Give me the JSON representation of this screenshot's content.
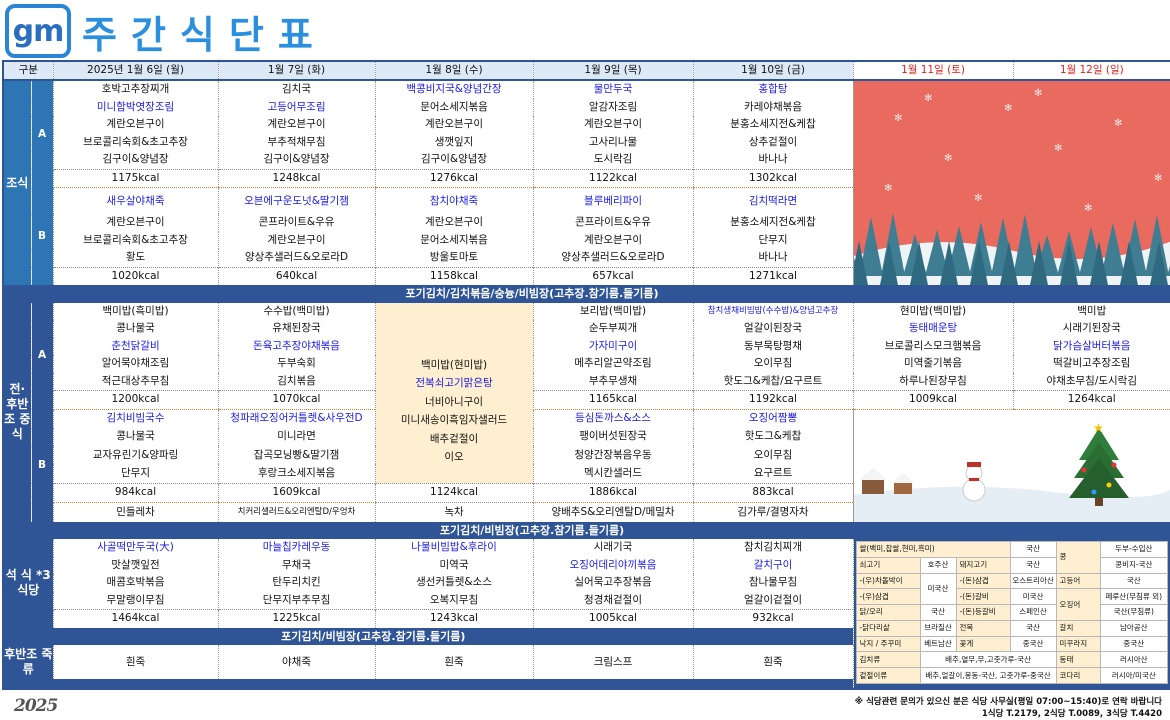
{
  "header": {
    "logo": "gm",
    "title": "주간식단표",
    "corner": "구분"
  },
  "colors": {
    "label_blue": "#2e75b6",
    "band_navy": "#2f5597",
    "highlight": "#1a1ae6",
    "weekend": "#e0201a",
    "merged_bg": "#fdefcf"
  },
  "days": [
    {
      "label": "2025년 1월 6일 (월)"
    },
    {
      "label": "1월 7일 (화)"
    },
    {
      "label": "1월 8일 (수)"
    },
    {
      "label": "1월 9일 (목)"
    },
    {
      "label": "1월 10일 (금)"
    },
    {
      "label": "1월 11일 (토)",
      "weekend": true
    },
    {
      "label": "1월 12일 (일)",
      "weekend": true
    }
  ],
  "breakfast": {
    "label": "조식",
    "band": "포기김치/김치볶음/숭늉/비빔장(고추장.참기름.들기름)",
    "groups": [
      {
        "label": "A",
        "days": [
          {
            "items": [
              "호박고추장찌개",
              "미니함박엿장조림",
              "계란오븐구이",
              "브로콜리숙회&초고추장",
              "김구이&양념장"
            ],
            "highlight": 1,
            "kcal": "1175kcal"
          },
          {
            "items": [
              "김치국",
              "고등어무조림",
              "계란오븐구이",
              "부추적채무침",
              "김구이&양념장"
            ],
            "highlight": 1,
            "kcal": "1248kcal"
          },
          {
            "items": [
              "백콩비지국&양념간장",
              "문어소세지볶음",
              "계란오븐구이",
              "생깻잎지",
              "김구이&양념장"
            ],
            "highlight": 0,
            "kcal": "1276kcal"
          },
          {
            "items": [
              "물만두국",
              "알감자조림",
              "계란오븐구이",
              "고사리나물",
              "도시락김"
            ],
            "highlight": 0,
            "kcal": "1122kcal"
          },
          {
            "items": [
              "홍합탕",
              "카레야채볶음",
              "분홍소세지전&케찹",
              "상추겉절이",
              "바나나"
            ],
            "highlight": 0,
            "kcal": "1302kcal"
          }
        ]
      },
      {
        "label": "B",
        "days": [
          {
            "items": [
              "새우살야채죽",
              "계란오븐구이",
              "브로콜리숙회&초고추장",
              "황도"
            ],
            "highlight": 0,
            "kcal": "1020kcal"
          },
          {
            "items": [
              "오븐에구운도넛&딸기잼",
              "콘프라이트&우유",
              "계란오븐구이",
              "양상추샐러드&오로라D"
            ],
            "highlight": 0,
            "kcal": "640kcal"
          },
          {
            "items": [
              "참치야채죽",
              "계란오븐구이",
              "문어소세지볶음",
              "방울토마토"
            ],
            "highlight": 0,
            "kcal": "1158kcal"
          },
          {
            "items": [
              "블루베리파이",
              "콘프라이트&우유",
              "계란오븐구이",
              "양상추샐러드&오로라D"
            ],
            "highlight": 0,
            "kcal": "657kcal"
          },
          {
            "items": [
              "김치떡라면",
              "분홍소세지전&케찹",
              "단무지",
              "바나나"
            ],
            "highlight": 0,
            "kcal": "1271kcal"
          }
        ]
      }
    ]
  },
  "lunch": {
    "label": "전·후반조 중식",
    "band": "포기김치/비빔장(고추장.참기름.들기름)",
    "groups": [
      {
        "label": "A",
        "days": [
          {
            "items": [
              "백미밥(흑미밥)",
              "콩나물국",
              "춘천닭갈비",
              "알어묵야채조림",
              "적근대상추무침"
            ],
            "highlight": 2,
            "kcal": "1200kcal"
          },
          {
            "items": [
              "수수밥(백미밥)",
              "유채된장국",
              "돈육고추장야채볶음",
              "두부숙회",
              "김치볶음"
            ],
            "highlight": 2,
            "kcal": "1070kcal"
          },
          null,
          {
            "items": [
              "보리밥(백미밥)",
              "순두부찌개",
              "가자미구이",
              "메추리알곤약조림",
              "부추무생채"
            ],
            "highlight": 2,
            "kcal": "1165kcal"
          },
          {
            "items": [
              "참치생채비빔밥(수수밥)&양념고추장",
              "얼갈이된장국",
              "동부묵탕평채",
              "오이무침",
              "핫도그&케찹/요구르트"
            ],
            "highlight": 0,
            "kcal": "1192kcal"
          },
          {
            "items": [
              "현미밥(백미밥)",
              "동태매운탕",
              "브로콜리스모크햄볶음",
              "미역줄기볶음",
              "하루나된장무침"
            ],
            "highlight": 1,
            "kcal": "1009kcal"
          },
          {
            "items": [
              "백미밥",
              "시래기된장국",
              "닭가슴살버터볶음",
              "떡갈비고추장조림",
              "야채초무침/도시락김"
            ],
            "highlight": 2,
            "kcal": "1264kcal"
          }
        ]
      },
      {
        "label": "B",
        "days": [
          {
            "items": [
              "김치비빔국수",
              "콩나물국",
              "교자유린기&양파링",
              "단무지"
            ],
            "highlight": 0,
            "kcal": "984kcal"
          },
          {
            "items": [
              "청파래오징어커틀렛&사우전D",
              "미니라면",
              "잡곡모닝빵&딸기잼",
              "후랑크소세지볶음"
            ],
            "highlight": 0,
            "kcal": "1609kcal"
          },
          null,
          {
            "items": [
              "등심돈까스&소스",
              "팽이버섯된장국",
              "청양간장볶음우동",
              "멕시칸샐러드"
            ],
            "highlight": 0,
            "kcal": "1886kcal"
          },
          {
            "items": [
              "오징어짬뽕",
              "핫도그&케찹",
              "오이무침",
              "요구르트"
            ],
            "highlight": 0,
            "kcal": "883kcal"
          }
        ]
      }
    ],
    "merged": {
      "items": [
        "백미밥(현미밥)",
        "전복쇠고기맑은탕",
        "너비아니구이",
        "미니새송이흑임자샐러드",
        "배추겉절이",
        "이오"
      ],
      "highlight": 1,
      "kcal": "1124kcal"
    },
    "tea": [
      "민들레차",
      "치커리샐러드&오리엔탈D/우엉차",
      "녹차",
      "양배추S&오리엔탈D/메밀차",
      "김가루/결명자차"
    ]
  },
  "dinner": {
    "label": "석 식 *3식당",
    "band": "포기김치/비빔장(고추장.참기름.들기름)",
    "days": [
      {
        "items": [
          "사골떡만두국(大)",
          "맛살깻잎전",
          "매콤호박볶음",
          "무말랭이무침"
        ],
        "highlight": 0,
        "kcal": "1464kcal"
      },
      {
        "items": [
          "마늘칩카레우동",
          "무채국",
          "탄두리치킨",
          "단무지부추무침"
        ],
        "highlight": 0,
        "kcal": "1225kcal"
      },
      {
        "items": [
          "나물비빔밥&후라이",
          "미역국",
          "생선커틀렛&소스",
          "오복지무침"
        ],
        "highlight": 0,
        "kcal": "1243kcal"
      },
      {
        "items": [
          "시래기국",
          "오징어데리야끼볶음",
          "실어묵고추장볶음",
          "청경채겉절이"
        ],
        "highlight": 1,
        "kcal": "1005kcal"
      },
      {
        "items": [
          "참치김치찌개",
          "갈치구이",
          "참나물무침",
          "얼갈이겉절이"
        ],
        "highlight": 1,
        "kcal": "932kcal"
      }
    ]
  },
  "porridge": {
    "label": "후반조 죽류",
    "days": [
      "흰죽",
      "야채죽",
      "흰죽",
      "크림스프",
      "흰죽"
    ]
  },
  "origin": {
    "cells": [
      "쌀(백미,찹쌀,현미,흑미)",
      "국산",
      "콩",
      "두부-수입산",
      "쇠고기",
      "호주산",
      "돼지고기",
      "국산",
      "콩비지-국산",
      "-(우)차돌박이",
      "미국산",
      "-(돈)삼겹",
      "오스트리아산",
      "고등어",
      "국산",
      "-(우)삼겹",
      "-(돈)갈비",
      "미국산",
      "오징어",
      "페루산(무침류 외)",
      "닭/오리",
      "국산",
      "-(돈)등갈비",
      "스페인산",
      "국산(무침류)",
      "-닭다리살",
      "브라질산",
      "전복",
      "국산",
      "갈치",
      "남아공산",
      "낙지 / 주꾸미",
      "베트남산",
      "꽃게",
      "중국산",
      "미꾸라지",
      "중국산",
      "김치류",
      "배추,열무,무,고춧가루-국산",
      "동태",
      "러시아산",
      "겉절이류",
      "배추,얼갈이,봉동-국산, 고춧가루-중국산",
      "코다리",
      "러시아/미국산"
    ]
  },
  "footer": {
    "notice": "※ 식당관련 문의가 있으신 분은 식당 사무실(평일 07:00~15:40)로 연락 바랍니다",
    "phones": "1식당 T.2179, 2식당 T.0089, 3식당 T.4420",
    "signature": "2025"
  }
}
